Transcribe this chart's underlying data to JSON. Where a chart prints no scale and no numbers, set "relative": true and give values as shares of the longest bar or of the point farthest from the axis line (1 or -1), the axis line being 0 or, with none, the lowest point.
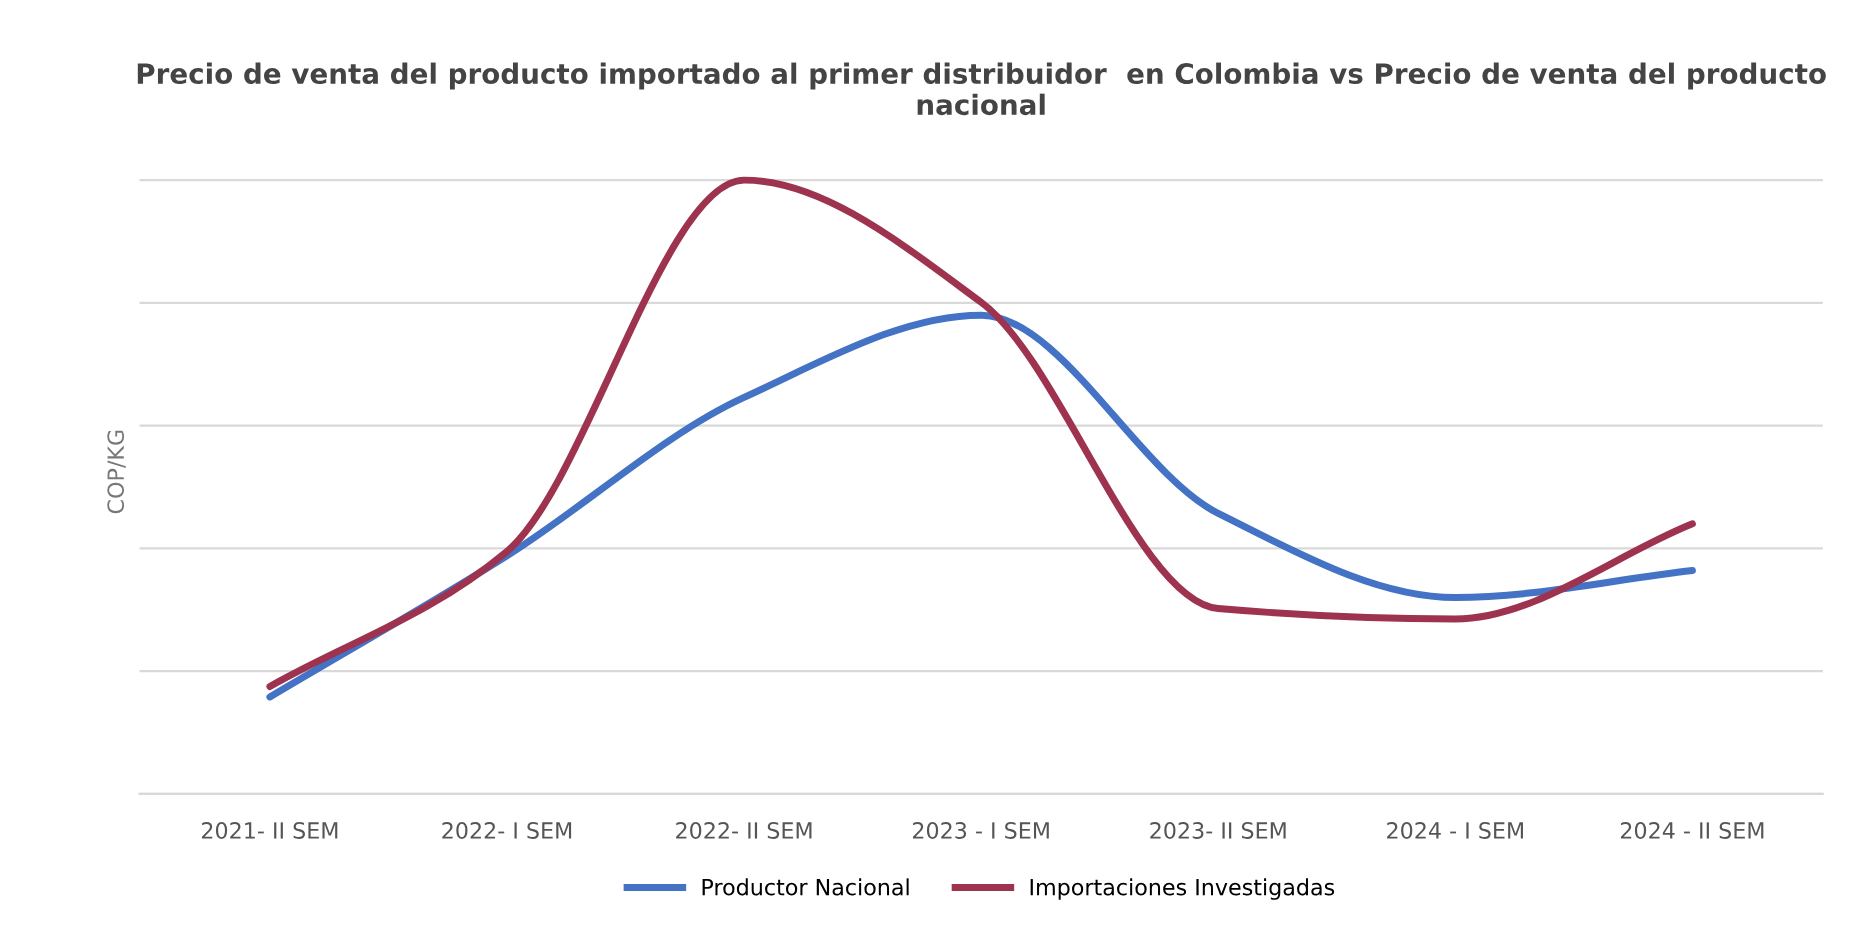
{
  "chart_data": {
    "type": "line",
    "title": "Precio de venta del producto importado al primer distribuidor  en Colombia vs Precio de venta del producto nacional",
    "ylabel": "COP/KG",
    "relative": true,
    "grid": "y",
    "legend": "bottom",
    "marker": "none",
    "line_style": "solid",
    "categories": [
      "2021- II SEM",
      "2022- I SEM",
      "2022- II SEM",
      "2023 - I SEM",
      "2023- II SEM",
      "2024 - I SEM",
      "2024 - II SEM"
    ],
    "series": [
      {
        "name": "Productor Nacional",
        "color": "#4472c4",
        "values": [
          0.158,
          0.388,
          0.646,
          0.78,
          0.457,
          0.32,
          0.364
        ]
      },
      {
        "name": "Importaciones Investigadas",
        "color": "#9e3350",
        "values": [
          0.175,
          0.395,
          1,
          0.801,
          0.302,
          0.285,
          0.44
        ]
      }
    ]
  }
}
